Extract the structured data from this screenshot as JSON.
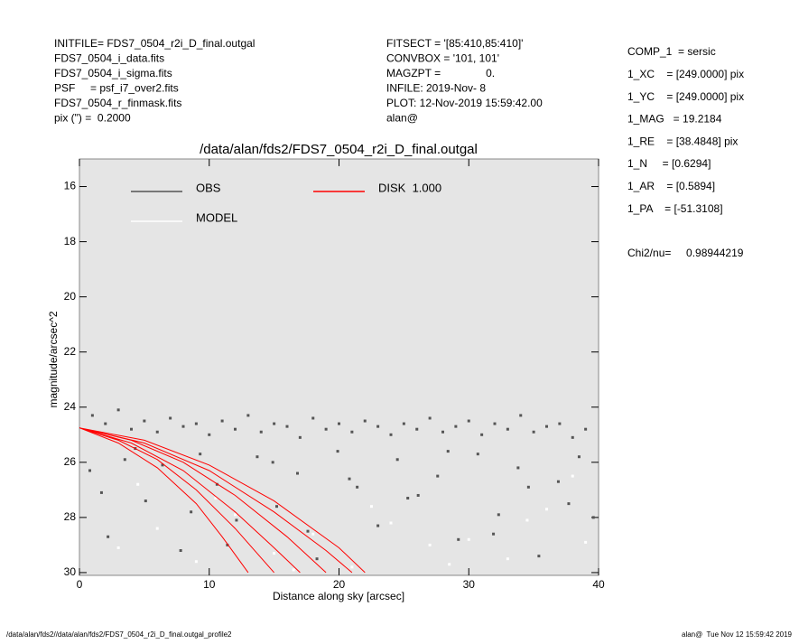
{
  "header": {
    "left": [
      "INITFILE= FDS7_0504_r2i_D_final.outgal",
      "FDS7_0504_i_data.fits",
      "FDS7_0504_i_sigma.fits",
      "PSF     = psf_i7_over2.fits",
      "FDS7_0504_r_finmask.fits",
      "pix (\") =  0.2000"
    ],
    "middle": [
      "FITSECT = '[85:410,85:410]'",
      "CONVBOX = '101, 101'",
      "MAGZPT =               0.",
      "INFILE: 2019-Nov- 8",
      "PLOT: 12-Nov-2019 15:59:42.00",
      "alan@"
    ],
    "right": [
      "COMP_1  = sersic",
      "1_XC    = [249.0000] pix",
      "1_YC    = [249.0000] pix",
      "1_MAG   = 19.2184",
      "1_RE    = [38.4848] pix",
      "1_N     = [0.6294]",
      "1_AR    = [0.5894]",
      "1_PA    = [-51.3108]"
    ],
    "chi2": "Chi2/nu=     0.98944219"
  },
  "footer": {
    "left": "/data/alan/fds2//data/alan/fds2/FDS7_0504_r2i_D_final.outgal_profile2",
    "right": "alan@  Tue Nov 12 15:59:42 2019"
  },
  "chart_data": {
    "type": "scatter",
    "title": "/data/alan/fds2/FDS7_0504_r2i_D_final.outgal",
    "x_label": "Distance along sky [arcsec]",
    "y_label": "magnitude/arcsec^2",
    "xlim": [
      0,
      40
    ],
    "xticks": [
      0,
      10,
      20,
      30,
      40
    ],
    "ylim": [
      15,
      30.1
    ],
    "yticks": [
      16,
      18,
      20,
      22,
      24,
      26,
      28,
      30
    ],
    "y_inverted": true,
    "series": [
      {
        "name": "OBS",
        "color": "#555555",
        "style": "points",
        "x": [
          1,
          2,
          3,
          4,
          5,
          6,
          7,
          8,
          9,
          10,
          11,
          12,
          13,
          14,
          15,
          16,
          17,
          18,
          19,
          20,
          21,
          22,
          23,
          24,
          25,
          26,
          27,
          28,
          29,
          30,
          31,
          32,
          33,
          34,
          35,
          36,
          37,
          38,
          39,
          0.8,
          2.2,
          3.5,
          5.1,
          6.4,
          7.8,
          9.3,
          10.6,
          12.1,
          13.7,
          15.2,
          16.8,
          18.3,
          19.9,
          21.4,
          23.0,
          24.5,
          26.1,
          27.6,
          29.2,
          30.7,
          32.3,
          33.8,
          35.4,
          36.9,
          38.5,
          39.6,
          1.7,
          4.3,
          8.6,
          11.4,
          14.9,
          17.6,
          20.8,
          25.3,
          28.4,
          31.9,
          34.6,
          37.7
        ],
        "values": [
          24.3,
          24.6,
          24.1,
          24.8,
          24.5,
          24.9,
          24.4,
          24.7,
          24.6,
          25.0,
          24.5,
          24.8,
          24.3,
          24.9,
          24.6,
          24.7,
          25.1,
          24.4,
          24.8,
          24.6,
          24.9,
          24.5,
          24.7,
          25.0,
          24.6,
          24.8,
          24.4,
          24.9,
          24.7,
          24.5,
          25.0,
          24.6,
          24.8,
          24.3,
          24.9,
          24.7,
          24.6,
          25.1,
          24.8,
          26.3,
          28.7,
          25.9,
          27.4,
          26.1,
          29.2,
          25.7,
          26.8,
          28.1,
          25.8,
          27.6,
          26.4,
          29.5,
          25.6,
          26.9,
          28.3,
          25.9,
          27.2,
          26.5,
          28.8,
          25.7,
          27.9,
          26.2,
          29.4,
          26.7,
          25.8,
          28.0,
          27.1,
          25.5,
          27.8,
          29.0,
          26.0,
          28.5,
          26.6,
          27.3,
          25.6,
          28.6,
          26.9,
          27.5
        ]
      },
      {
        "name": "MODEL",
        "color": "#ffffff",
        "style": "points",
        "x": [
          3,
          6,
          9,
          12,
          15,
          18,
          21,
          24,
          27,
          30,
          33,
          36,
          39,
          4.5,
          10.5,
          16.5,
          22.5,
          28.5,
          34.5,
          38
        ],
        "values": [
          29.1,
          28.4,
          29.6,
          27.9,
          29.3,
          28.6,
          29.8,
          28.2,
          29.0,
          28.8,
          29.5,
          27.7,
          28.9,
          26.8,
          27.3,
          29.9,
          27.6,
          29.7,
          28.1,
          26.5
        ]
      },
      {
        "name": "DISK  1.000",
        "color": "#ff0000",
        "style": "line",
        "x": [
          0,
          3,
          6,
          9,
          11,
          13,
          null,
          0,
          3,
          6,
          9,
          12,
          15,
          null,
          0,
          4,
          8,
          12,
          15,
          17,
          null,
          0,
          4,
          8,
          12,
          16,
          19,
          null,
          0,
          5,
          10,
          15,
          19,
          21,
          null,
          0,
          5,
          10,
          15,
          20,
          22
        ],
        "values": [
          24.75,
          25.3,
          26.2,
          27.5,
          28.7,
          30.0,
          null,
          24.75,
          25.2,
          25.9,
          27.0,
          28.4,
          30.0,
          null,
          24.75,
          25.3,
          26.3,
          27.8,
          29.1,
          30.0,
          null,
          24.75,
          25.2,
          26.0,
          27.2,
          28.7,
          30.0,
          null,
          24.75,
          25.3,
          26.3,
          27.8,
          29.2,
          30.0,
          null,
          24.75,
          25.2,
          26.1,
          27.4,
          29.1,
          30.0
        ]
      }
    ]
  }
}
